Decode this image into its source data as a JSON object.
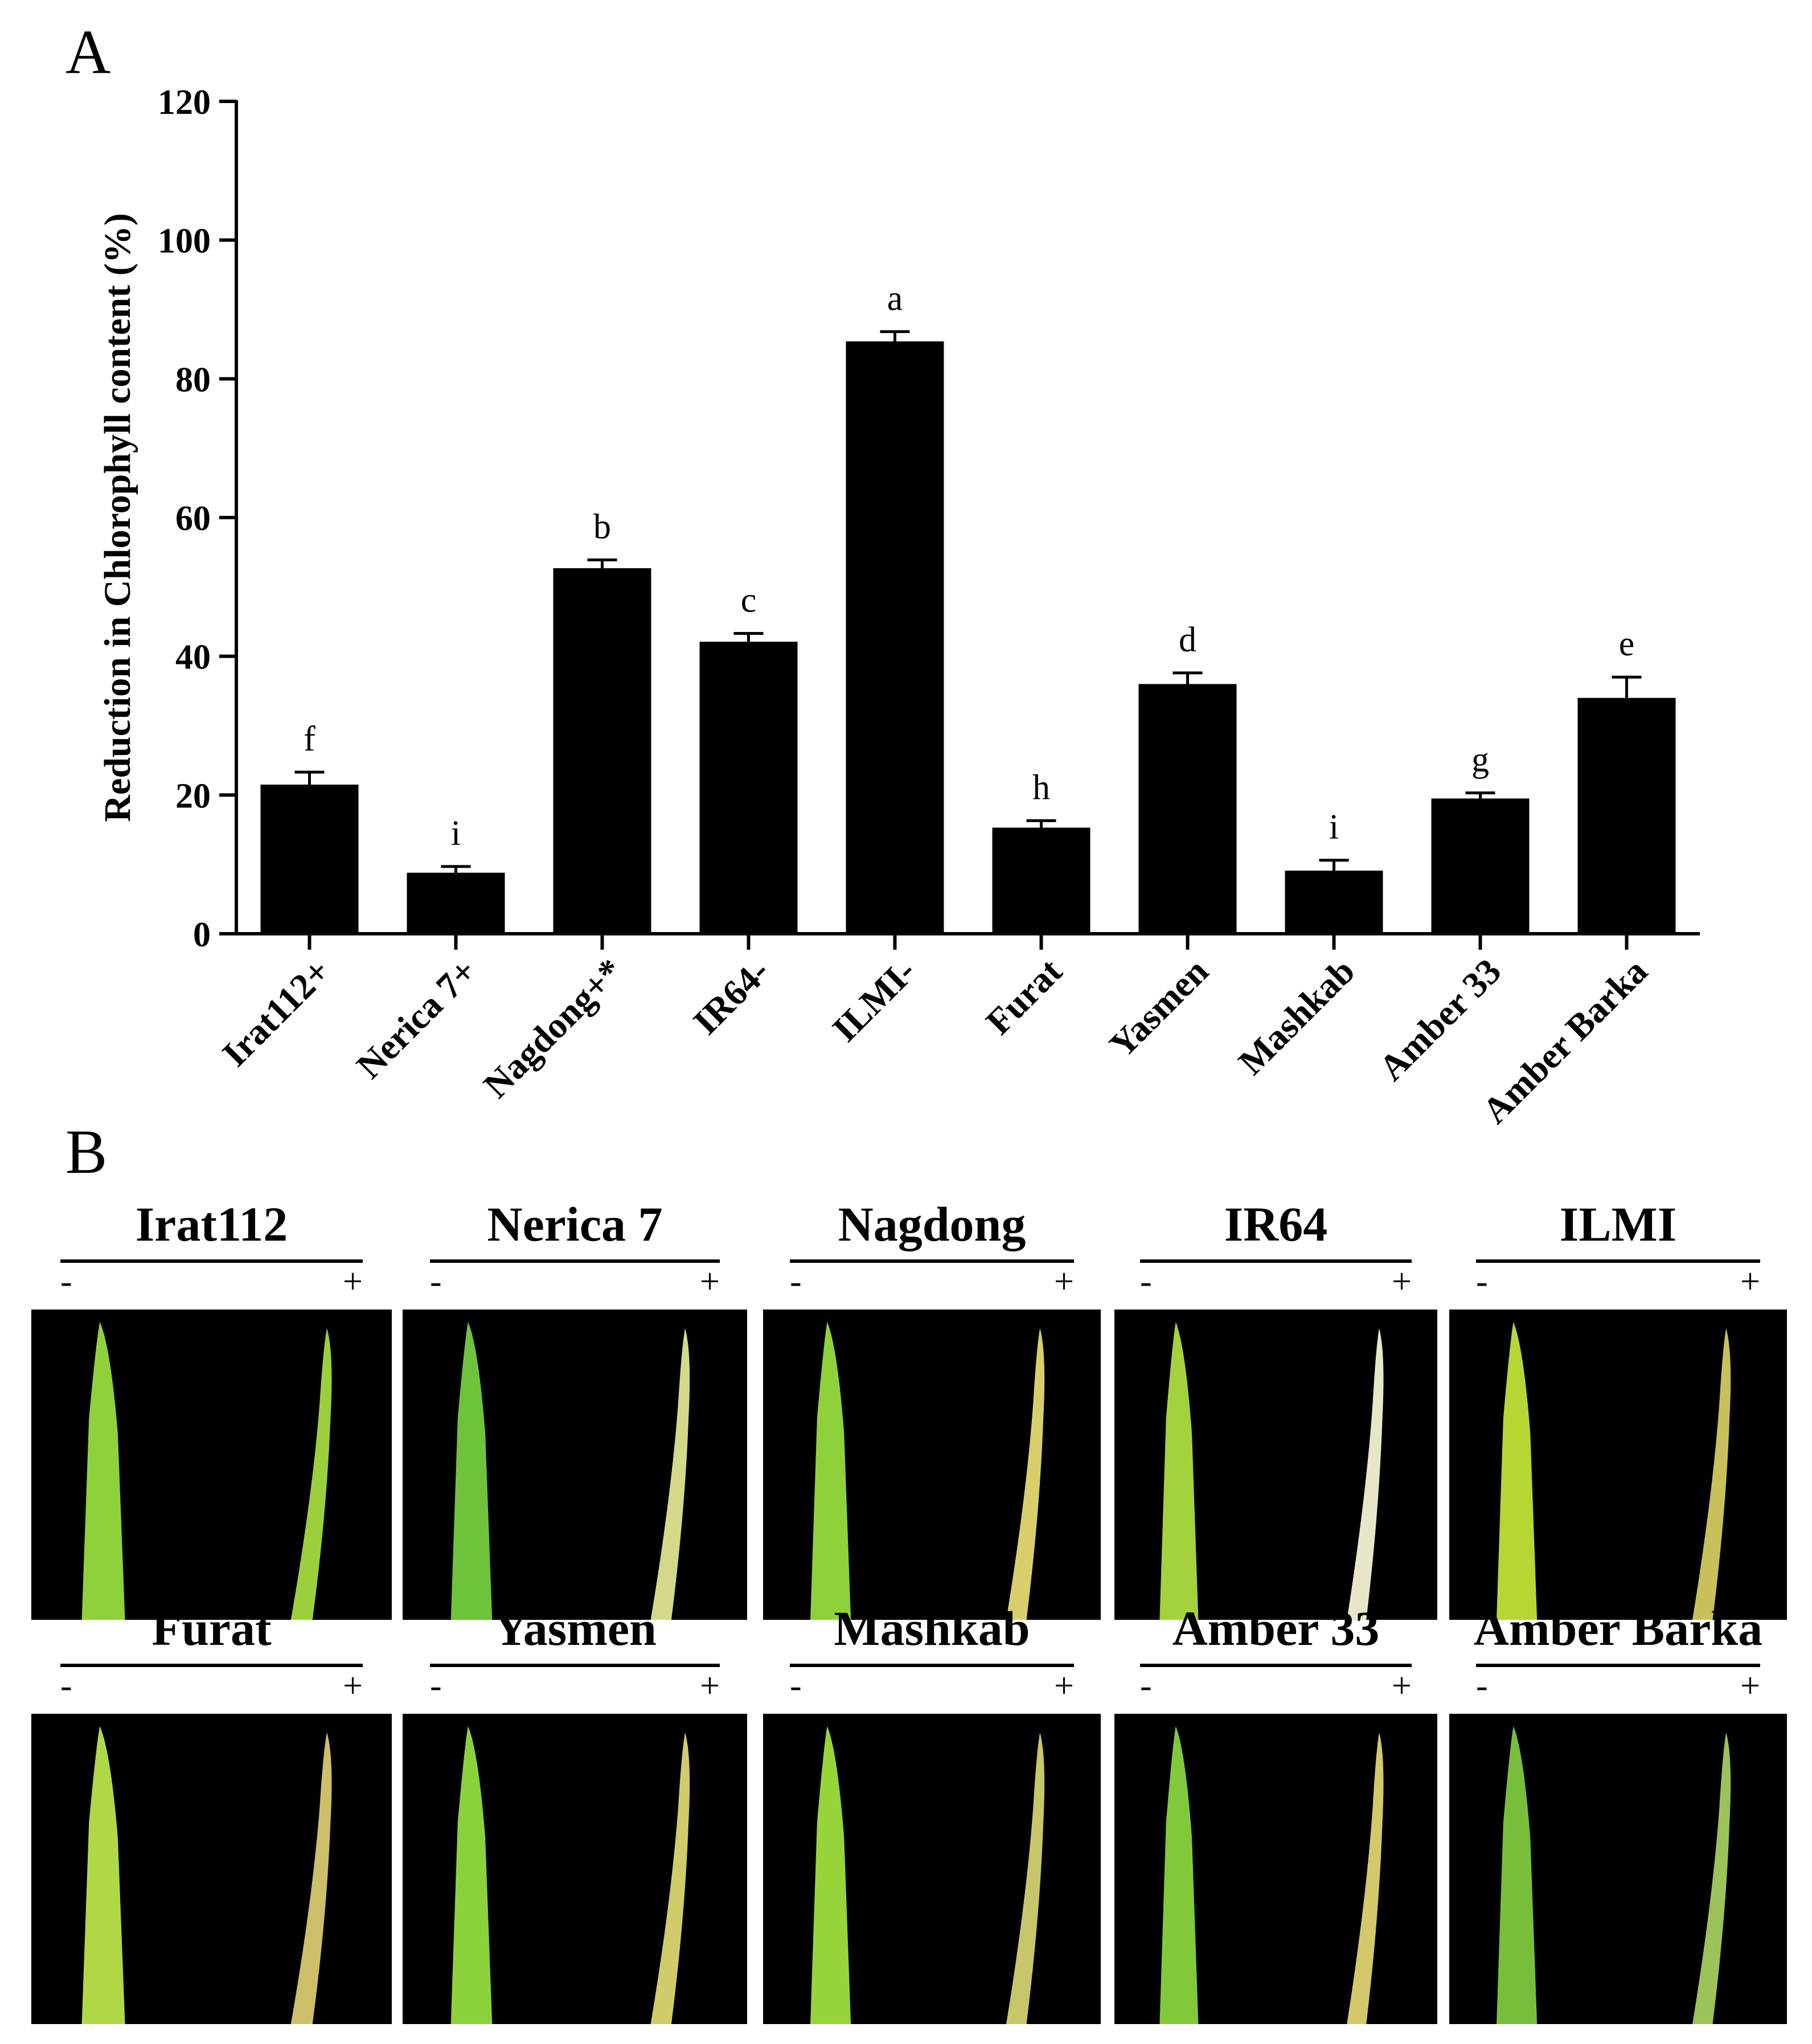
{
  "panel_a_label": "A",
  "panel_b_label": "B",
  "chart_data": {
    "type": "bar",
    "title": "",
    "xlabel": "",
    "ylabel": "Reduction in Chlorophyll content (%)",
    "ylim": [
      0,
      120
    ],
    "yticks": [
      "0",
      "20",
      "40",
      "60",
      "80",
      "100",
      "120"
    ],
    "categories": [
      "Irat112+",
      "Nerica 7+",
      "Nagdong+*",
      "IR64-",
      "ILMI-",
      "Furat",
      "Yasmen",
      "Mashkab",
      "Amber 33",
      "Amber Barka"
    ],
    "values": [
      21.5,
      8.8,
      52.7,
      42.1,
      85.4,
      15.3,
      36.0,
      9.1,
      19.5,
      34.0
    ],
    "errors": [
      1.8,
      0.9,
      1.2,
      1.2,
      1.4,
      1.0,
      1.6,
      1.5,
      0.8,
      3.0
    ],
    "labels": [
      "f",
      "i",
      "b",
      "c",
      "a",
      "h",
      "d",
      "i",
      "g",
      "e"
    ],
    "bar_color": "#000000"
  },
  "leaf_panels": [
    {
      "name": "Irat112",
      "minus": "-",
      "plus": "+",
      "control_color": "#8fd13a",
      "treated_color": "#9ccf3c"
    },
    {
      "name": "Nerica 7",
      "minus": "-",
      "plus": "+",
      "control_color": "#6fc23b",
      "treated_color": "#d4d98a"
    },
    {
      "name": "Nagdong",
      "minus": "-",
      "plus": "+",
      "control_color": "#8fd13a",
      "treated_color": "#d8cf6c"
    },
    {
      "name": "IR64",
      "minus": "-",
      "plus": "+",
      "control_color": "#a3d23c",
      "treated_color": "#e8e6c8"
    },
    {
      "name": "ILMI",
      "minus": "-",
      "plus": "+",
      "control_color": "#b6d633",
      "treated_color": "#c8c05a"
    },
    {
      "name": "Furat",
      "minus": "-",
      "plus": "+",
      "control_color": "#b0d846",
      "treated_color": "#cdbf6a"
    },
    {
      "name": "Yasmen",
      "minus": "-",
      "plus": "+",
      "control_color": "#8bd13c",
      "treated_color": "#d0cc6a"
    },
    {
      "name": "Mashkab",
      "minus": "-",
      "plus": "+",
      "control_color": "#97d43a",
      "treated_color": "#c8c66a"
    },
    {
      "name": "Amber 33",
      "minus": "-",
      "plus": "+",
      "control_color": "#82c93a",
      "treated_color": "#d3c86a"
    },
    {
      "name": "Amber Barka",
      "minus": "-",
      "plus": "+",
      "control_color": "#78be3a",
      "treated_color": "#9cc25a"
    }
  ]
}
